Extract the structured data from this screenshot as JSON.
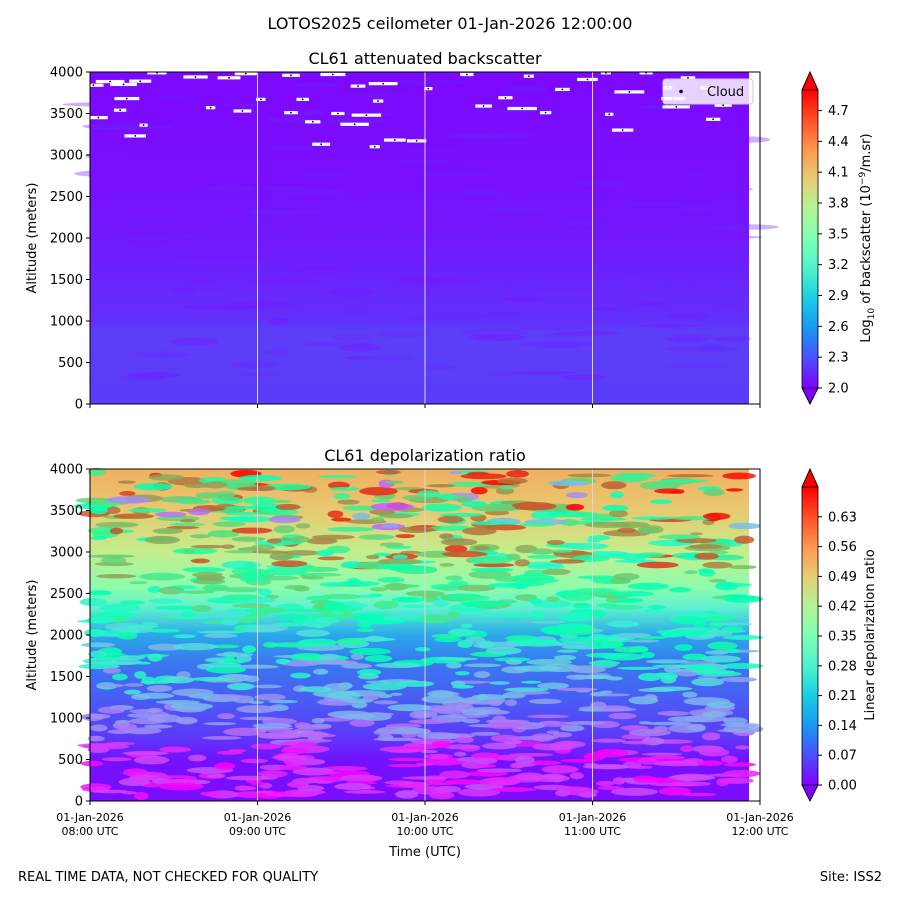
{
  "figure": {
    "suptitle": "LOTOS2025 ceilometer 01-Jan-2026 12:00:00",
    "footer_left": "REAL TIME DATA, NOT CHECKED FOR QUALITY",
    "footer_right": "Site: ISS2"
  },
  "chart_data": [
    {
      "type": "heatmap",
      "title": "CL61 attenuated backscatter",
      "xlabel": "",
      "ylabel": "Altitude (meters)",
      "x_ticks": [
        "08:00",
        "09:00",
        "10:00",
        "11:00",
        "12:00"
      ],
      "x_tick_labels_shown": false,
      "y_ticks": [
        0,
        500,
        1000,
        1500,
        2000,
        2500,
        3000,
        3500,
        4000
      ],
      "ylim": [
        0,
        4000
      ],
      "colormap": "rainbow",
      "colorbar": {
        "label": "Log10 of backscatter (10^-9/m.sr)",
        "label_parts": [
          "Log",
          "10",
          " of backscatter (10",
          "−9",
          "/m.sr)"
        ],
        "range": [
          2.0,
          4.9
        ],
        "ticks": [
          "2.0",
          "2.3",
          "2.6",
          "2.9",
          "3.2",
          "3.5",
          "3.8",
          "4.1",
          "4.4",
          "4.7"
        ],
        "extend": "both"
      },
      "legend": {
        "entries": [
          "Cloud"
        ],
        "loc": "upper right"
      },
      "cloud_points": [
        {
          "t": 8.02,
          "alt": 3840
        },
        {
          "t": 8.12,
          "alt": 3885
        },
        {
          "t": 8.2,
          "alt": 3850
        },
        {
          "t": 8.3,
          "alt": 3890
        },
        {
          "t": 8.22,
          "alt": 3680
        },
        {
          "t": 8.05,
          "alt": 3450
        },
        {
          "t": 8.18,
          "alt": 3540
        },
        {
          "t": 8.32,
          "alt": 3360
        },
        {
          "t": 8.27,
          "alt": 3230
        },
        {
          "t": 8.4,
          "alt": 3990
        },
        {
          "t": 8.63,
          "alt": 3940
        },
        {
          "t": 8.72,
          "alt": 3570
        },
        {
          "t": 8.83,
          "alt": 3930
        },
        {
          "t": 8.93,
          "alt": 3980
        },
        {
          "t": 9.02,
          "alt": 3670
        },
        {
          "t": 8.91,
          "alt": 3530
        },
        {
          "t": 9.2,
          "alt": 3960
        },
        {
          "t": 9.27,
          "alt": 3670
        },
        {
          "t": 9.2,
          "alt": 3510
        },
        {
          "t": 9.33,
          "alt": 3400
        },
        {
          "t": 9.45,
          "alt": 3970
        },
        {
          "t": 9.6,
          "alt": 3830
        },
        {
          "t": 9.48,
          "alt": 3500
        },
        {
          "t": 9.75,
          "alt": 3860
        },
        {
          "t": 9.72,
          "alt": 3650
        },
        {
          "t": 9.65,
          "alt": 3480
        },
        {
          "t": 9.58,
          "alt": 3370
        },
        {
          "t": 9.38,
          "alt": 3130
        },
        {
          "t": 9.7,
          "alt": 3100
        },
        {
          "t": 9.82,
          "alt": 3180
        },
        {
          "t": 9.95,
          "alt": 3170
        },
        {
          "t": 10.02,
          "alt": 3800
        },
        {
          "t": 10.25,
          "alt": 3970
        },
        {
          "t": 10.48,
          "alt": 3690
        },
        {
          "t": 10.35,
          "alt": 3590
        },
        {
          "t": 10.58,
          "alt": 3560
        },
        {
          "t": 10.62,
          "alt": 3950
        },
        {
          "t": 10.72,
          "alt": 3510
        },
        {
          "t": 10.82,
          "alt": 3790
        },
        {
          "t": 10.97,
          "alt": 3910
        },
        {
          "t": 11.1,
          "alt": 3490
        },
        {
          "t": 11.22,
          "alt": 3760
        },
        {
          "t": 11.08,
          "alt": 3990
        },
        {
          "t": 11.32,
          "alt": 3990
        },
        {
          "t": 11.18,
          "alt": 3300
        },
        {
          "t": 11.45,
          "alt": 3810
        },
        {
          "t": 11.48,
          "alt": 3680
        },
        {
          "t": 11.5,
          "alt": 3580
        },
        {
          "t": 11.57,
          "alt": 3930
        },
        {
          "t": 11.68,
          "alt": 3810
        },
        {
          "t": 11.72,
          "alt": 3430
        },
        {
          "t": 11.78,
          "alt": 3600
        }
      ]
    },
    {
      "type": "heatmap",
      "title": "CL61 depolarization ratio",
      "xlabel": "Time (UTC)",
      "ylabel": "Altitude (meters)",
      "x_ticks": [
        {
          "date": "01-Jan-2026",
          "time": "08:00 UTC"
        },
        {
          "date": "01-Jan-2026",
          "time": "09:00 UTC"
        },
        {
          "date": "01-Jan-2026",
          "time": "10:00 UTC"
        },
        {
          "date": "01-Jan-2026",
          "time": "11:00 UTC"
        },
        {
          "date": "01-Jan-2026",
          "time": "12:00 UTC"
        }
      ],
      "y_ticks": [
        0,
        500,
        1000,
        1500,
        2000,
        2500,
        3000,
        3500,
        4000
      ],
      "ylim": [
        0,
        4000
      ],
      "colormap": "rainbow",
      "colorbar": {
        "label": "Linear depolarization ratio",
        "range": [
          0.0,
          0.7
        ],
        "ticks": [
          "0.00",
          "0.07",
          "0.14",
          "0.21",
          "0.28",
          "0.35",
          "0.42",
          "0.49",
          "0.56",
          "0.63"
        ],
        "extend": "both"
      }
    }
  ]
}
